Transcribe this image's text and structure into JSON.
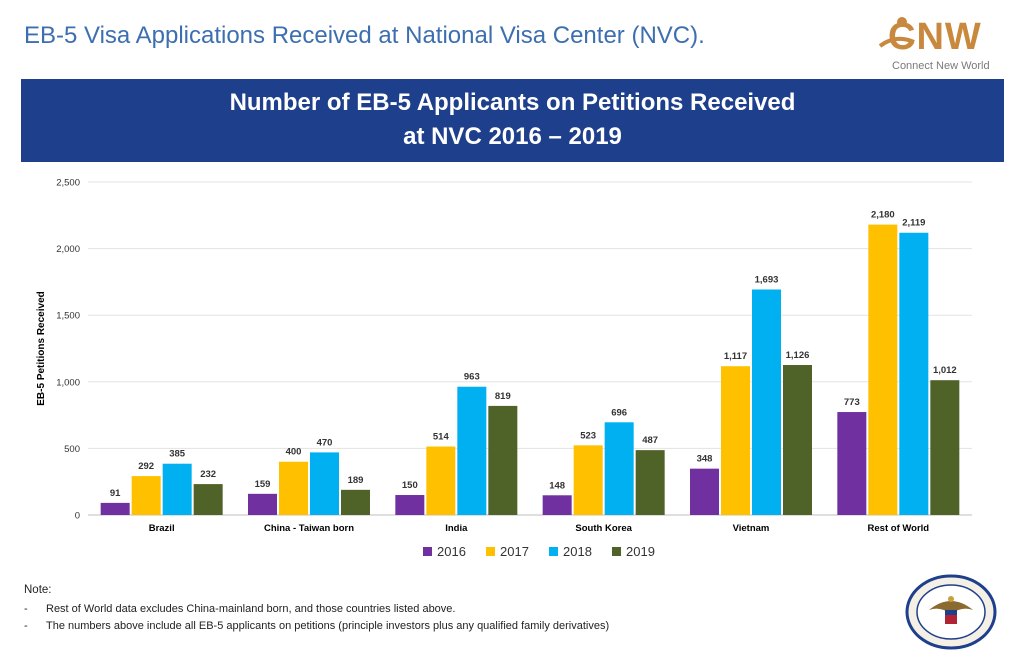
{
  "page": {
    "title": "EB-5 Visa Applications Received at National Visa Center (NVC)."
  },
  "logo": {
    "word": "CNW",
    "subtitle": "Connect New World"
  },
  "banner": {
    "line1": "Number of EB-5 Applicants on Petitions Received",
    "line2": "at NVC 2016 – 2019"
  },
  "chart_data": {
    "type": "bar",
    "title": "Number of EB-5 Applicants on Petitions Received at NVC 2016 – 2019",
    "xlabel": "",
    "ylabel": "EB-5 Petitions Received",
    "ylim": [
      0,
      2500
    ],
    "yticks": [
      0,
      500,
      1000,
      1500,
      2000,
      2500
    ],
    "ytick_labels": [
      "0",
      "500",
      "1,000",
      "1,500",
      "2,000",
      "2,500"
    ],
    "grid": true,
    "legend_position": "bottom",
    "categories": [
      "Brazil",
      "China - Taiwan born",
      "India",
      "South Korea",
      "Vietnam",
      "Rest of World"
    ],
    "series": [
      {
        "name": "2016",
        "color": "#7030a0",
        "values": [
          91,
          159,
          150,
          148,
          348,
          773
        ],
        "labels": [
          "91",
          "159",
          "150",
          "148",
          "348",
          "773"
        ]
      },
      {
        "name": "2017",
        "color": "#ffc000",
        "values": [
          292,
          400,
          514,
          523,
          1117,
          2180
        ],
        "labels": [
          "292",
          "400",
          "514",
          "523",
          "1,117",
          "2,180"
        ]
      },
      {
        "name": "2018",
        "color": "#00b0f0",
        "values": [
          385,
          470,
          963,
          696,
          1693,
          2119
        ],
        "labels": [
          "385",
          "470",
          "963",
          "696",
          "1,693",
          "2,119"
        ]
      },
      {
        "name": "2019",
        "color": "#4f6228",
        "values": [
          232,
          189,
          819,
          487,
          1126,
          1012
        ],
        "labels": [
          "232",
          "189",
          "819",
          "487",
          "1,126",
          "1,012"
        ]
      }
    ]
  },
  "notes": {
    "heading": "Note:",
    "items": [
      "Rest of World data excludes China-mainland born, and those countries listed above.",
      "The numbers above include all EB-5 applicants on petitions (principle investors plus any qualified family derivatives)"
    ]
  },
  "seal": {
    "name": "us-department-of-state-seal"
  }
}
